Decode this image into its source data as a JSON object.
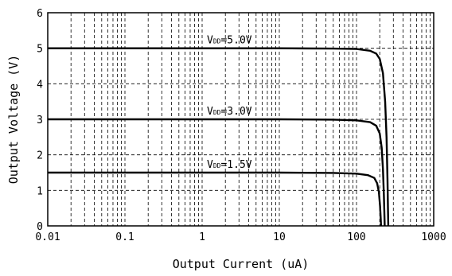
{
  "chart_data": {
    "type": "line",
    "title": "",
    "xlabel": "Output Current  (uA)",
    "ylabel": "Output Voltage  (V)",
    "x_scale": "log",
    "xlim": [
      0.01,
      1000
    ],
    "ylim": [
      0,
      6
    ],
    "x_ticks": [
      {
        "value": 0.01,
        "label": "0.01"
      },
      {
        "value": 0.1,
        "label": "0.1"
      },
      {
        "value": 1,
        "label": "1"
      },
      {
        "value": 10,
        "label": "10"
      },
      {
        "value": 100,
        "label": "100"
      },
      {
        "value": 1000,
        "label": "1000"
      }
    ],
    "y_ticks": [
      {
        "value": 0,
        "label": "0"
      },
      {
        "value": 1,
        "label": "1"
      },
      {
        "value": 2,
        "label": "2"
      },
      {
        "value": 3,
        "label": "3"
      },
      {
        "value": 4,
        "label": "4"
      },
      {
        "value": 5,
        "label": "5"
      },
      {
        "value": 6,
        "label": "6"
      }
    ],
    "grid": true,
    "series": [
      {
        "name": "VDD=5.0V",
        "label_main": "V",
        "label_sub": "DD",
        "label_rest": "=5.0V",
        "x": [
          0.01,
          1,
          10,
          50,
          100,
          150,
          180,
          200,
          220,
          235,
          245,
          252,
          256,
          258
        ],
        "y": [
          5.0,
          5.0,
          5.0,
          4.99,
          4.98,
          4.93,
          4.85,
          4.7,
          4.3,
          3.5,
          2.5,
          1.3,
          0.4,
          0
        ]
      },
      {
        "name": "VDD=3.0V",
        "label_main": "V",
        "label_sub": "DD",
        "label_rest": "=3.0V",
        "x": [
          0.01,
          1,
          10,
          50,
          100,
          150,
          180,
          200,
          212,
          220,
          226,
          230,
          232
        ],
        "y": [
          3.0,
          3.0,
          3.0,
          2.99,
          2.97,
          2.92,
          2.82,
          2.6,
          2.2,
          1.6,
          0.9,
          0.3,
          0
        ]
      },
      {
        "name": "VDD=1.5V",
        "label_main": "V",
        "label_sub": "DD",
        "label_rest": "=1.5V",
        "x": [
          0.01,
          1,
          10,
          50,
          100,
          140,
          170,
          185,
          195,
          202,
          206,
          208
        ],
        "y": [
          1.5,
          1.5,
          1.5,
          1.49,
          1.47,
          1.43,
          1.35,
          1.2,
          0.95,
          0.55,
          0.2,
          0
        ]
      }
    ]
  }
}
